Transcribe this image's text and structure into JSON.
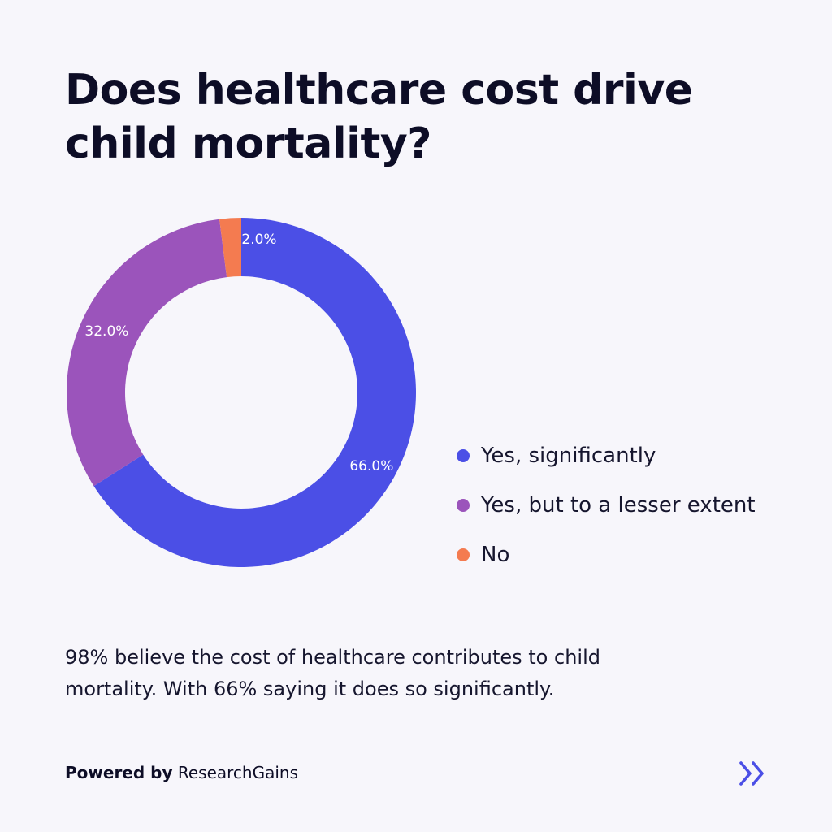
{
  "title_lines": [
    "Does healthcare cost drive",
    "child mortality?"
  ],
  "chart_data": {
    "type": "pie",
    "variant": "donut",
    "labels": [
      "Yes, significantly",
      "Yes, but to a lesser extent",
      "No"
    ],
    "values": [
      66.0,
      32.0,
      2.0
    ],
    "value_labels": [
      "66.0%",
      "32.0%",
      "2.0%"
    ],
    "colors": [
      "#4b4fe6",
      "#9b54bb",
      "#f47b50"
    ],
    "legend_position": "right"
  },
  "description_lines": [
    "98% believe the cost of healthcare contributes to child",
    "mortality. With 66% saying it does so significantly."
  ],
  "footer": {
    "powered_by": "Powered by",
    "brand": "ResearchGains"
  },
  "icons": {
    "next": "double-chevron-right-icon",
    "next_color": "#4b4fe6"
  }
}
